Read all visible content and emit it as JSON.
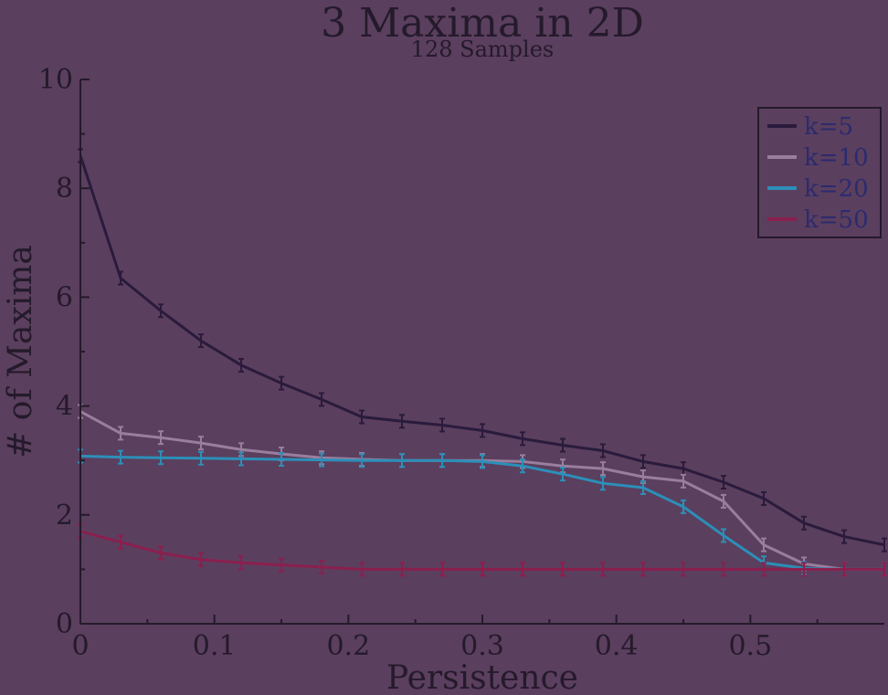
{
  "chart_data": {
    "type": "line",
    "title": "3 Maxima in 2D",
    "subtitle": "128 Samples",
    "xlabel": "Persistence",
    "ylabel": "# of Maxima",
    "xlim": [
      0,
      0.6
    ],
    "ylim": [
      0,
      10
    ],
    "x_ticks": [
      0,
      0.1,
      0.2,
      0.3,
      0.4,
      0.5
    ],
    "x_tick_labels": [
      "0",
      "0.1",
      "0.2",
      "0.3",
      "0.4",
      "0.5"
    ],
    "y_ticks": [
      0,
      2,
      4,
      6,
      8,
      10
    ],
    "y_tick_labels": [
      "0",
      "2",
      "4",
      "6",
      "8",
      "10"
    ],
    "grid": false,
    "legend_position": "top-right",
    "series": [
      {
        "name": "k=5",
        "color": "#2a1b3d",
        "error_bars": true,
        "x": [
          0,
          0.03,
          0.06,
          0.09,
          0.12,
          0.15,
          0.18,
          0.21,
          0.24,
          0.27,
          0.3,
          0.33,
          0.36,
          0.39,
          0.42,
          0.45,
          0.48,
          0.51,
          0.54,
          0.57,
          0.6
        ],
        "y": [
          8.6,
          6.35,
          5.75,
          5.2,
          4.75,
          4.42,
          4.12,
          3.8,
          3.72,
          3.65,
          3.55,
          3.4,
          3.28,
          3.18,
          2.98,
          2.85,
          2.6,
          2.3,
          1.85,
          1.6,
          1.45
        ]
      },
      {
        "name": "k=10",
        "color": "#9a7e9e",
        "error_bars": true,
        "x": [
          0,
          0.03,
          0.06,
          0.09,
          0.12,
          0.15,
          0.18,
          0.21,
          0.24,
          0.27,
          0.3,
          0.33,
          0.36,
          0.39,
          0.42,
          0.45,
          0.48,
          0.51,
          0.54,
          0.57,
          0.6
        ],
        "y": [
          3.9,
          3.5,
          3.42,
          3.32,
          3.2,
          3.12,
          3.05,
          3.02,
          3.0,
          3.0,
          3.0,
          2.98,
          2.9,
          2.85,
          2.7,
          2.62,
          2.25,
          1.45,
          1.1,
          1.0,
          1.0
        ]
      },
      {
        "name": "k=20",
        "color": "#2c8fb8",
        "error_bars": true,
        "x": [
          0,
          0.03,
          0.06,
          0.09,
          0.12,
          0.15,
          0.18,
          0.21,
          0.24,
          0.27,
          0.3,
          0.33,
          0.36,
          0.39,
          0.42,
          0.45,
          0.48,
          0.51,
          0.54,
          0.57,
          0.6
        ],
        "y": [
          3.08,
          3.06,
          3.05,
          3.04,
          3.03,
          3.02,
          3.01,
          3.0,
          3.0,
          3.0,
          2.98,
          2.9,
          2.75,
          2.58,
          2.5,
          2.15,
          1.62,
          1.12,
          1.02,
          1.0,
          1.0
        ]
      },
      {
        "name": "k=50",
        "color": "#8a1f4e",
        "error_bars": true,
        "x": [
          0,
          0.03,
          0.06,
          0.09,
          0.12,
          0.15,
          0.18,
          0.21,
          0.24,
          0.27,
          0.3,
          0.33,
          0.36,
          0.39,
          0.42,
          0.45,
          0.48,
          0.51,
          0.54,
          0.57,
          0.6
        ],
        "y": [
          1.7,
          1.5,
          1.3,
          1.18,
          1.12,
          1.08,
          1.04,
          1.0,
          1.0,
          1.0,
          1.0,
          1.0,
          1.0,
          1.0,
          1.0,
          1.0,
          1.0,
          1.0,
          1.0,
          1.0,
          1.0
        ]
      }
    ]
  }
}
